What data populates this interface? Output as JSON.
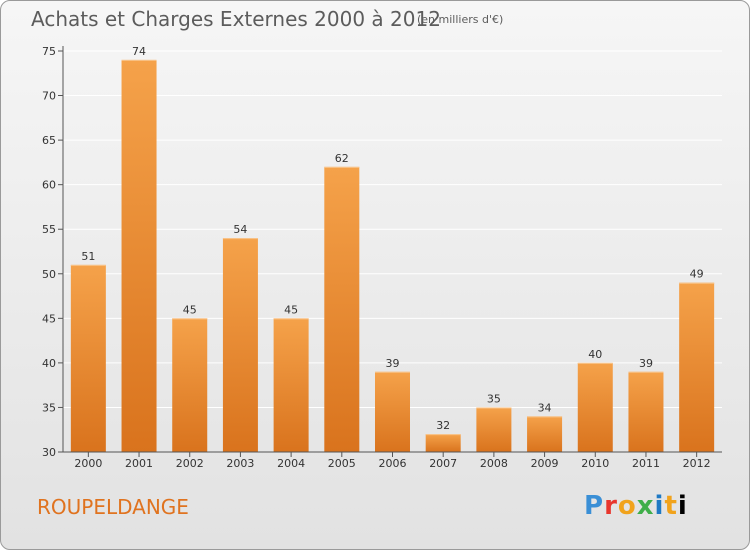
{
  "header": {
    "title": "Achats et Charges Externes 2000 à 2012",
    "unit": "(en milliers d'€)"
  },
  "footer": {
    "commune": "ROUPELDANGE",
    "logo_letters": [
      "P",
      "r",
      "o",
      "x",
      "i",
      "t",
      "i"
    ]
  },
  "colors": {
    "bar_light": "#f5a24a",
    "bar_dark": "#d9731d",
    "commune_text": "#e0731f"
  },
  "chart_data": {
    "type": "bar",
    "title": "Achats et Charges Externes 2000 à 2012",
    "subtitle": "(en milliers d'€)",
    "xlabel": "",
    "ylabel": "",
    "categories": [
      "2000",
      "2001",
      "2002",
      "2003",
      "2004",
      "2005",
      "2006",
      "2007",
      "2008",
      "2009",
      "2010",
      "2011",
      "2012"
    ],
    "values": [
      51,
      74,
      45,
      54,
      45,
      62,
      39,
      32,
      35,
      34,
      40,
      39,
      49
    ],
    "ylim": [
      30,
      75
    ],
    "yticks": [
      30,
      35,
      40,
      45,
      50,
      55,
      60,
      65,
      70,
      75
    ],
    "grid": true,
    "legend": "none"
  }
}
